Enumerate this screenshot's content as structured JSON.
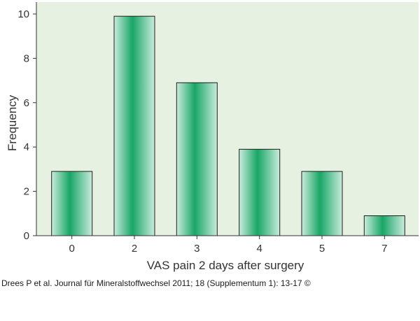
{
  "chart_data": {
    "type": "bar",
    "categories": [
      "0",
      "2",
      "3",
      "4",
      "5",
      "7"
    ],
    "values": [
      2.9,
      9.9,
      6.9,
      3.9,
      2.9,
      0.9
    ],
    "xlabel": "VAS pain 2 days after surgery",
    "ylabel": "Frequency",
    "ylim": [
      0,
      10
    ],
    "yticks": [
      "0",
      "2",
      "4",
      "6",
      "8",
      "10"
    ],
    "grid": false,
    "colors": {
      "plot_background": "#e6f1e1",
      "bar_edge": "#1f1f1f",
      "bar_light": "#c9ebdc",
      "bar_dark": "#18a666",
      "axis": "#333333"
    }
  },
  "citation": "Drees P et al. Journal für Mineralstoffwechsel 2011; 18 (Supplementum 1): 13-17 ©"
}
